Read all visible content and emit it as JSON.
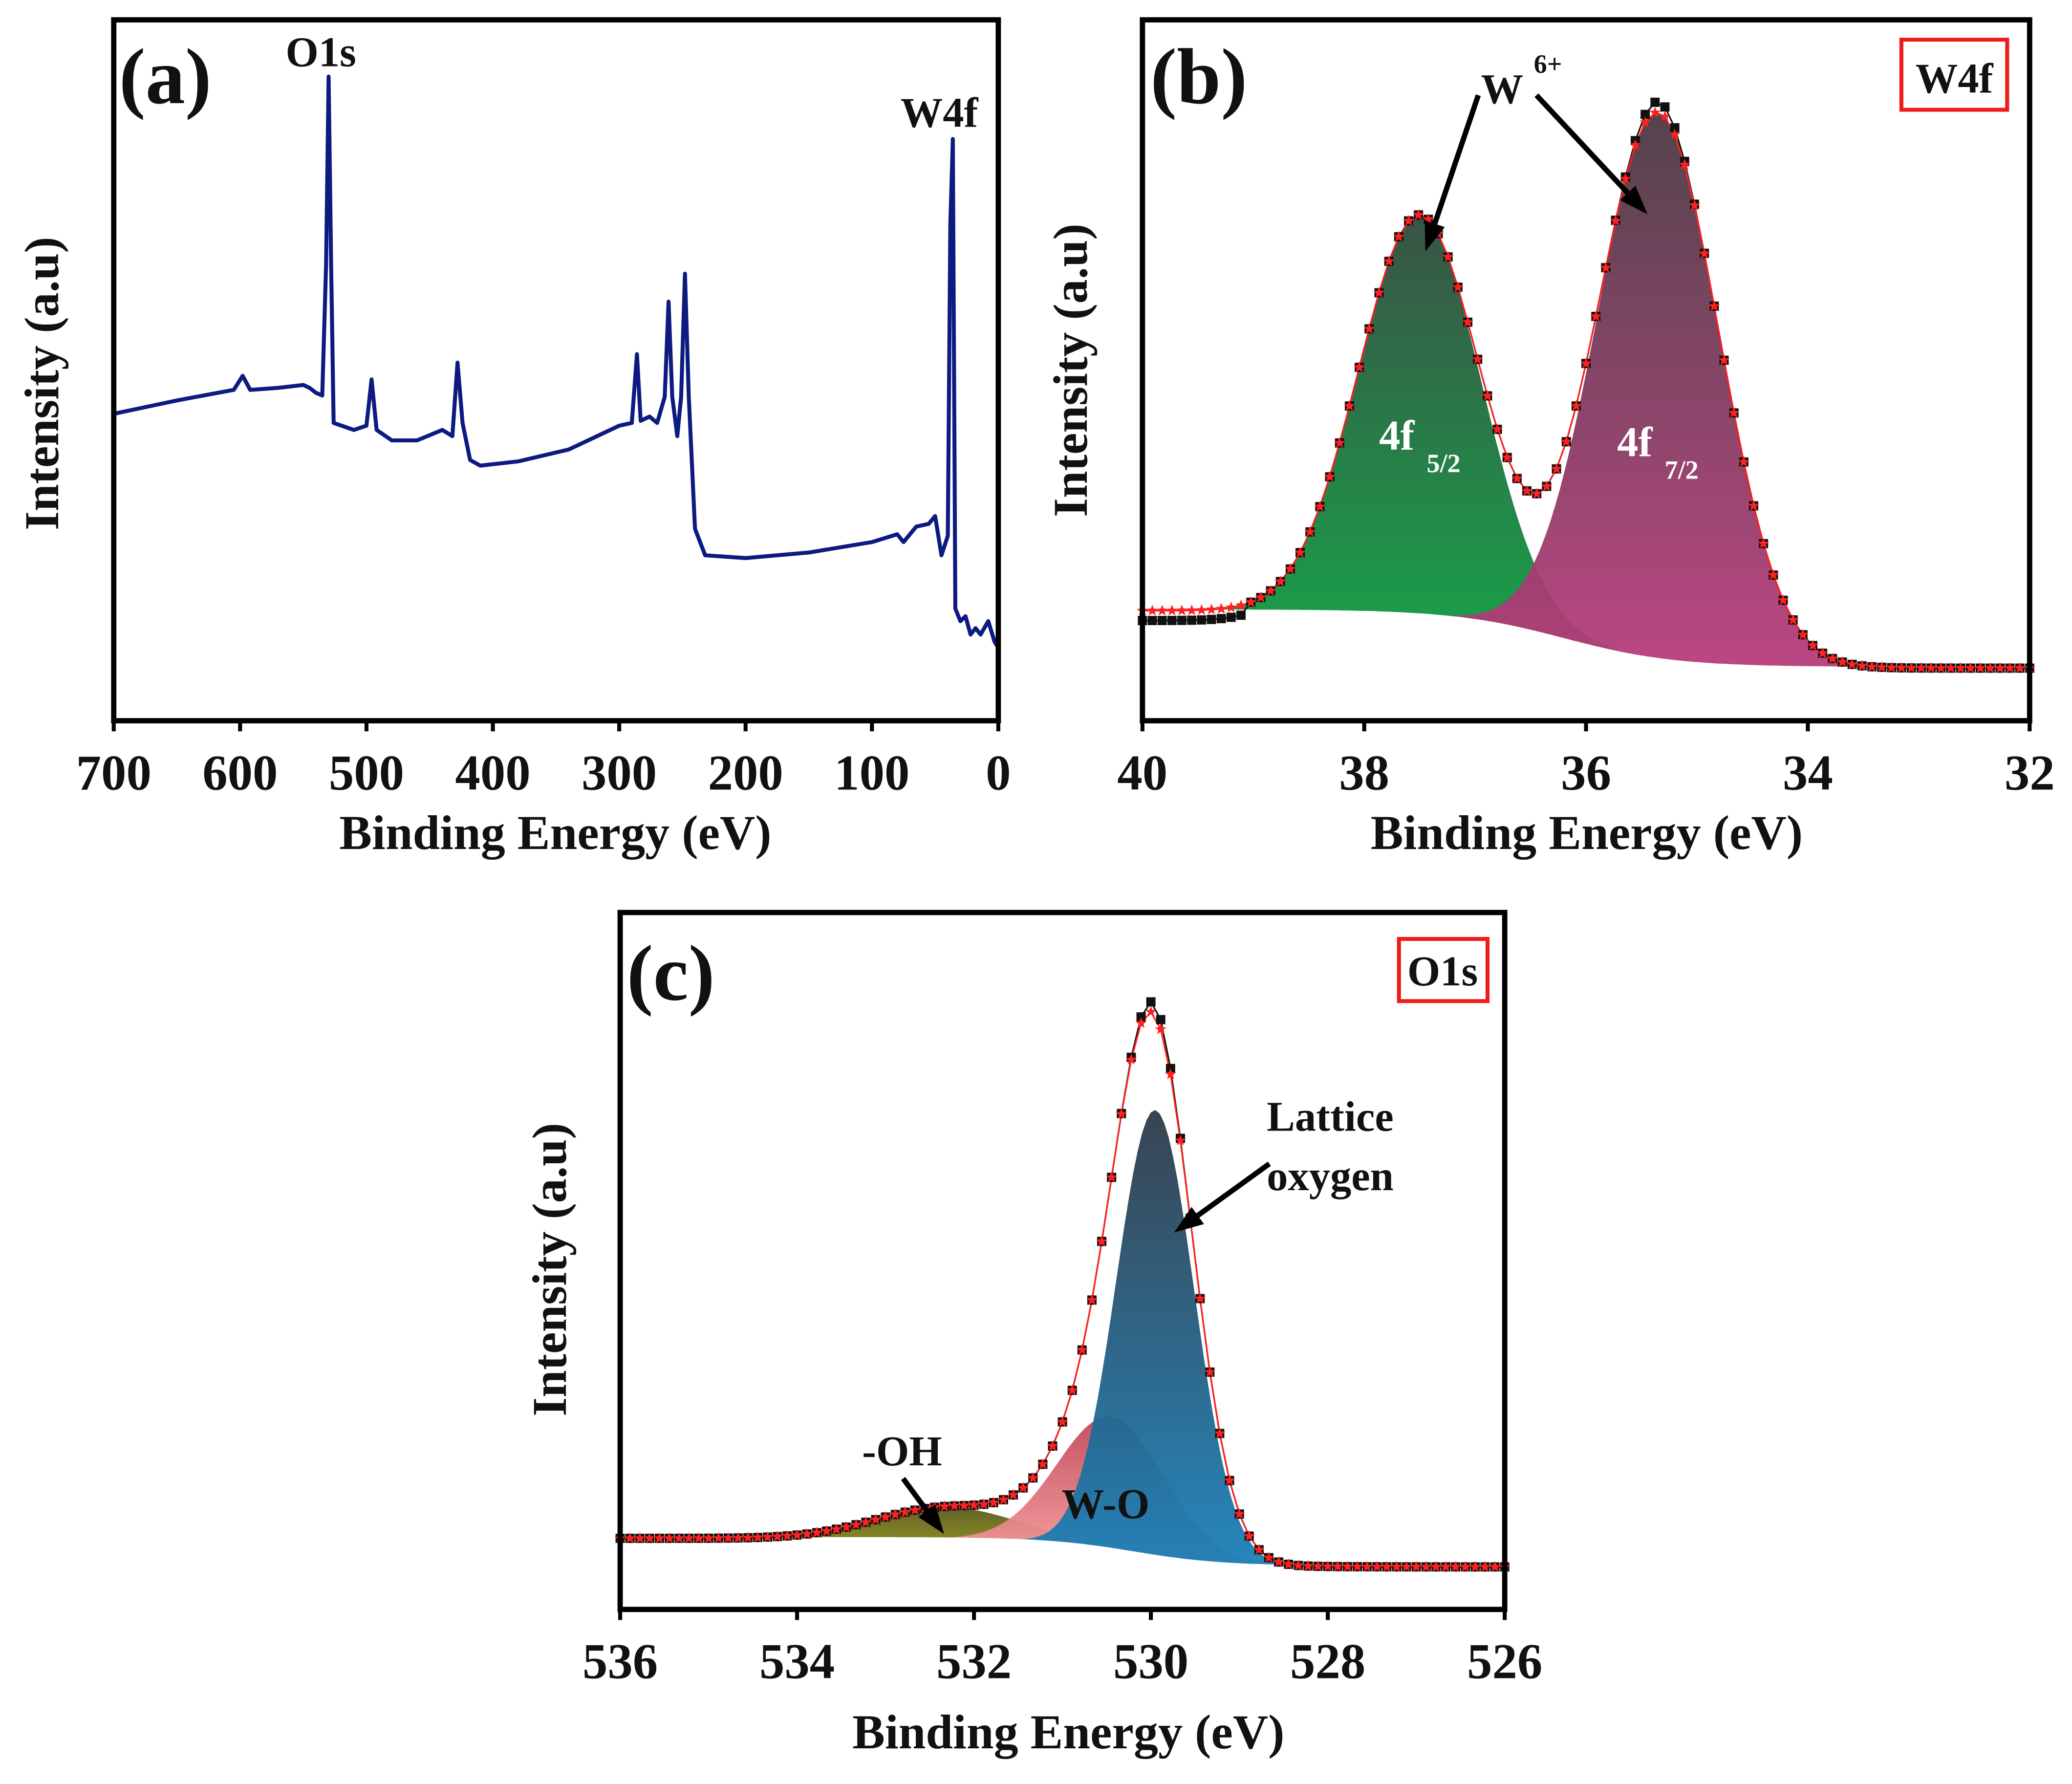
{
  "chart_data": [
    {
      "id": "a",
      "type": "line",
      "panel_label": "(a)",
      "title": "",
      "xlabel": "Binding Energy (eV)",
      "ylabel": "Intensity (a.u)",
      "xlim": [
        700,
        0
      ],
      "ylim": [
        0,
        100
      ],
      "xticks": [
        700,
        600,
        500,
        400,
        300,
        200,
        100,
        0
      ],
      "color": "#0d1a80",
      "annotations": [
        {
          "text": "O1s",
          "x": 531
        },
        {
          "text": "W4f",
          "x": 36
        }
      ],
      "x": [
        700,
        650,
        605,
        598,
        592,
        570,
        550,
        545,
        540,
        535,
        532,
        530,
        528,
        526,
        510,
        500,
        496,
        492,
        480,
        460,
        440,
        432,
        428,
        424,
        418,
        410,
        380,
        340,
        300,
        290,
        286,
        283,
        276,
        270,
        264,
        261,
        258,
        254,
        251,
        248,
        245,
        240,
        232,
        200,
        150,
        100,
        80,
        75,
        65,
        55,
        50,
        45,
        40,
        38,
        36,
        34,
        30,
        26,
        22,
        18,
        14,
        8,
        3,
        0
      ],
      "y": [
        43.8,
        45.7,
        47.2,
        49.2,
        47.2,
        47.5,
        47.9,
        47.5,
        46.8,
        46.4,
        65.1,
        91.9,
        65.1,
        42.5,
        41.5,
        42.1,
        48.7,
        41.5,
        40.0,
        40.0,
        41.5,
        40.6,
        51.1,
        42.5,
        37.2,
        36.4,
        37.0,
        38.7,
        42.1,
        42.5,
        52.3,
        42.8,
        43.4,
        42.5,
        46.2,
        59.8,
        46.2,
        40.6,
        46.2,
        63.8,
        46.2,
        27.4,
        23.6,
        23.2,
        24.0,
        25.5,
        26.6,
        25.5,
        27.7,
        28.1,
        29.2,
        23.6,
        26.4,
        70.8,
        83.0,
        16.0,
        14.2,
        14.9,
        12.3,
        13.2,
        12.3,
        14.2,
        11.3,
        10.4
      ]
    },
    {
      "id": "b",
      "type": "area",
      "panel_label": "(b)",
      "boxed_title": "W4f",
      "xlabel": "Binding Energy (eV)",
      "ylabel": "Intensity (a.u)",
      "xlim": [
        40,
        32
      ],
      "ylim": [
        0,
        100
      ],
      "xticks": [
        40,
        38,
        36,
        34,
        32
      ],
      "baseline": {
        "left": 15.7,
        "right": 7.5,
        "step_center": 36.2
      },
      "components": [
        {
          "label": "4f",
          "sub": "5/2",
          "center": 37.5,
          "height": 57,
          "sigma": 0.55,
          "color_top": "#2f4a3c",
          "color_bottom": "#0aa040"
        },
        {
          "label": "4f",
          "sub": "7/2",
          "center": 35.35,
          "height": 78,
          "sigma": 0.55,
          "color_top": "#4a3a42",
          "color_bottom": "#b83c7c"
        }
      ],
      "series": [
        {
          "name": "experimental",
          "marker": "square",
          "color": "#111111"
        },
        {
          "name": "fit",
          "marker": "star",
          "color": "#ff2020"
        }
      ],
      "annotations": [
        {
          "text": "W",
          "sup": "6+"
        }
      ]
    },
    {
      "id": "c",
      "type": "area",
      "panel_label": "(c)",
      "boxed_title": "O1s",
      "xlabel": "Binding Energy (eV)",
      "ylabel": "Intensity (a.u)",
      "xlim": [
        536,
        526
      ],
      "ylim": [
        0,
        100
      ],
      "xticks": [
        536,
        534,
        532,
        530,
        528,
        526
      ],
      "baseline": {
        "left": 10.2,
        "right": 6.1,
        "step_center": 530.2
      },
      "components": [
        {
          "label": "-OH",
          "center": 532.3,
          "height": 4.5,
          "sigma": 0.8,
          "color_top": "#5a5a20",
          "color_bottom": "#a0a010"
        },
        {
          "label": "W-O",
          "center": 530.45,
          "height": 19,
          "sigma": 0.6,
          "color_top": "#c04858",
          "color_bottom": "#f8a0a0"
        },
        {
          "label": "Lattice oxygen",
          "label_lines": [
            "Lattice",
            "oxygen"
          ],
          "center": 529.95,
          "height": 64,
          "sigma": 0.44,
          "color_top": "#2e3a48",
          "color_bottom": "#1a80b8"
        }
      ],
      "series": [
        {
          "name": "experimental",
          "marker": "square",
          "color": "#111111"
        },
        {
          "name": "fit",
          "marker": "star",
          "color": "#ff2020"
        }
      ]
    }
  ]
}
